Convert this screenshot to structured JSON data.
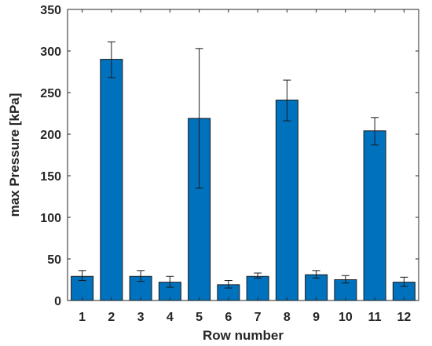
{
  "chart_data": {
    "type": "bar",
    "title": "",
    "xlabel": "Row number",
    "ylabel": "max Pressure [kPa]",
    "categories": [
      "1",
      "2",
      "3",
      "4",
      "5",
      "6",
      "7",
      "8",
      "9",
      "10",
      "11",
      "12"
    ],
    "values": [
      29,
      290,
      29,
      22,
      219,
      19,
      29,
      241,
      31,
      25,
      204,
      22
    ],
    "error_low": [
      24,
      268,
      23,
      16,
      135,
      15,
      27,
      216,
      27,
      21,
      187,
      17
    ],
    "error_high": [
      36,
      311,
      36,
      29,
      303,
      24,
      33,
      265,
      36,
      30,
      220,
      28
    ],
    "ylim": [
      0,
      350
    ],
    "yticks": [
      0,
      50,
      100,
      150,
      200,
      250,
      300,
      350
    ],
    "grid": false,
    "colors": {
      "bar": "#0072BD",
      "bar_edge": "#1a1a1a",
      "axis": "#262626",
      "error_bar": "#1a1a1a"
    }
  }
}
